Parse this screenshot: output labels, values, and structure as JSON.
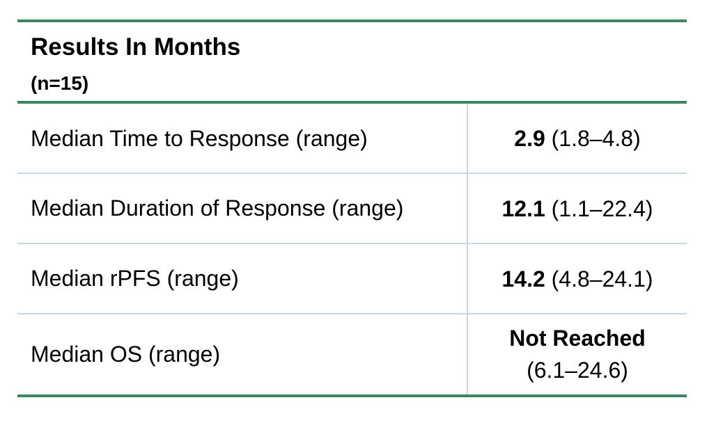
{
  "header": {
    "title": "Results In Months",
    "subtitle": "(n=15)"
  },
  "table": {
    "rows": [
      [
        "Median Time to Response (range)",
        "2.9",
        "(1.8–4.8)"
      ],
      [
        "Median Duration of Response (range)",
        "12.1",
        "(1.1–22.4)"
      ],
      [
        "Median rPFS (range)",
        "14.2",
        "(4.8–24.1)"
      ],
      [
        "Median OS (range)",
        "Not Reached",
        "(6.1–24.6)"
      ]
    ]
  }
}
